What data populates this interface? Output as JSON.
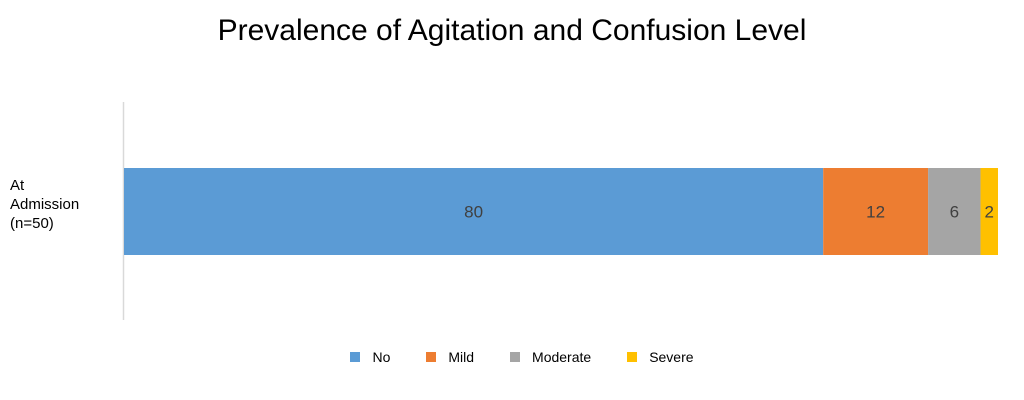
{
  "chart_data": {
    "type": "bar",
    "orientation": "horizontal",
    "stacked": true,
    "title": "Prevalence of Agitation and Confusion Level",
    "categories": [
      "At Admission (n=50)"
    ],
    "category_lines": [
      "At",
      "Admission",
      "(n=50)"
    ],
    "series": [
      {
        "name": "No",
        "values": [
          80
        ],
        "color": "#5B9BD5"
      },
      {
        "name": "Mild",
        "values": [
          12
        ],
        "color": "#ED7D31"
      },
      {
        "name": "Moderate",
        "values": [
          6
        ],
        "color": "#A5A5A5"
      },
      {
        "name": "Severe",
        "values": [
          2
        ],
        "color": "#FFC000"
      }
    ],
    "xlim": [
      0,
      100
    ],
    "xlabel": "",
    "ylabel": "",
    "grid": false,
    "legend_position": "bottom",
    "data_labels": true
  }
}
